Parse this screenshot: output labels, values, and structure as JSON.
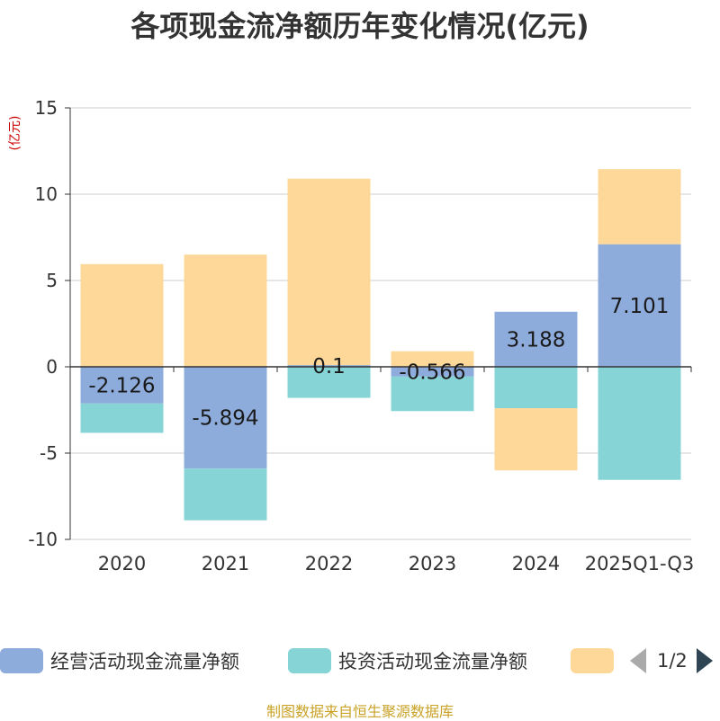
{
  "title": "各项现金流净额历年变化情况(亿元)",
  "unit_label": "(亿元)",
  "legend": {
    "items": [
      {
        "name": "经营活动现金流量净额",
        "color": "#8eacdb"
      },
      {
        "name": "投资活动现金流量净额",
        "color": "#86d4d6"
      },
      {
        "name": "",
        "color": "#fed899"
      }
    ],
    "page": "1/2",
    "page_prev_icon": "triangle-left-icon",
    "page_next_icon": "triangle-right-icon"
  },
  "source": "制图数据来自恒生聚源数据库",
  "chart_data": {
    "type": "bar",
    "stacked": true,
    "categories": [
      "2020",
      "2021",
      "2022",
      "2023",
      "2024",
      "2025Q1-Q3"
    ],
    "yticks": [
      15,
      10,
      5,
      0,
      -5,
      -10
    ],
    "ylim": [
      -10,
      15
    ],
    "series": [
      {
        "name": "经营活动现金流量净额",
        "color": "#8eacdb",
        "values": [
          -2.126,
          -5.894,
          0.1,
          -0.566,
          3.188,
          7.101
        ],
        "labels": [
          "-2.126",
          "-5.894",
          "0.1",
          "-0.566",
          "3.188",
          "7.101"
        ]
      },
      {
        "name": "投资活动现金流量净额",
        "color": "#86d4d6",
        "values": [
          -1.7,
          -3.0,
          -1.8,
          -2.0,
          -2.4,
          -6.55
        ]
      },
      {
        "name": "",
        "color": "#fed899",
        "values": [
          5.95,
          6.5,
          10.8,
          0.9,
          -3.6,
          4.35
        ]
      }
    ]
  }
}
